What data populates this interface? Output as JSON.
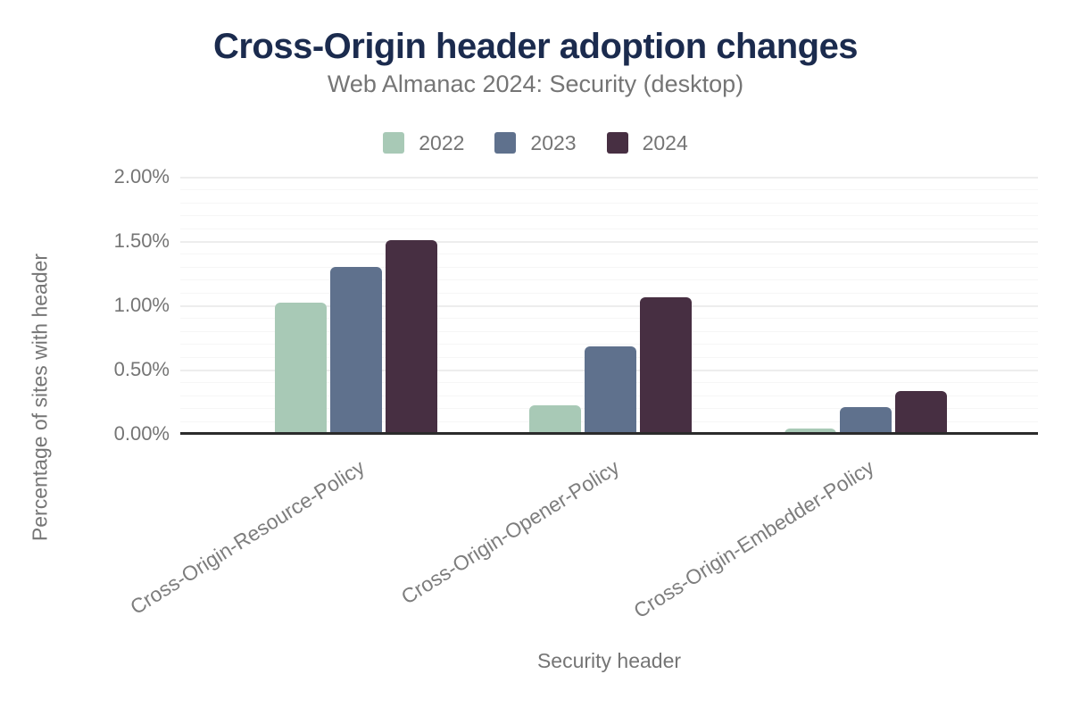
{
  "chart_data": {
    "type": "bar",
    "title": "Cross-Origin header adoption changes",
    "subtitle": "Web Almanac 2024: Security (desktop)",
    "xlabel": "Security header",
    "ylabel": "Percentage of sites with header",
    "categories": [
      "Cross-Origin-Resource-Policy",
      "Cross-Origin-Opener-Policy",
      "Cross-Origin-Embedder-Policy"
    ],
    "series": [
      {
        "name": "2022",
        "color": "#a8c9b6",
        "values": [
          1.02,
          0.22,
          0.04
        ]
      },
      {
        "name": "2023",
        "color": "#5f718d",
        "values": [
          1.3,
          0.68,
          0.21
        ]
      },
      {
        "name": "2024",
        "color": "#472f42",
        "values": [
          1.51,
          1.06,
          0.33
        ]
      }
    ],
    "unit": "%",
    "ylim": [
      0,
      2
    ],
    "y_ticks": [
      {
        "value": 0.0,
        "label": "0.00%"
      },
      {
        "value": 0.5,
        "label": "0.50%"
      },
      {
        "value": 1.0,
        "label": "1.00%"
      },
      {
        "value": 1.5,
        "label": "1.50%"
      },
      {
        "value": 2.0,
        "label": "2.00%"
      }
    ],
    "grid": {
      "direction": "horizontal",
      "major_step": 0.5,
      "minor_step": 0.1
    },
    "legend_position": "top"
  },
  "colors": {
    "title": "#1b2b4e",
    "subtitle": "#757575",
    "axis_text": "#757575",
    "category_text": "#7d7d7d",
    "baseline": "#2b2b2b",
    "grid_major": "#ededed",
    "grid_minor": "#f6f6f6"
  }
}
